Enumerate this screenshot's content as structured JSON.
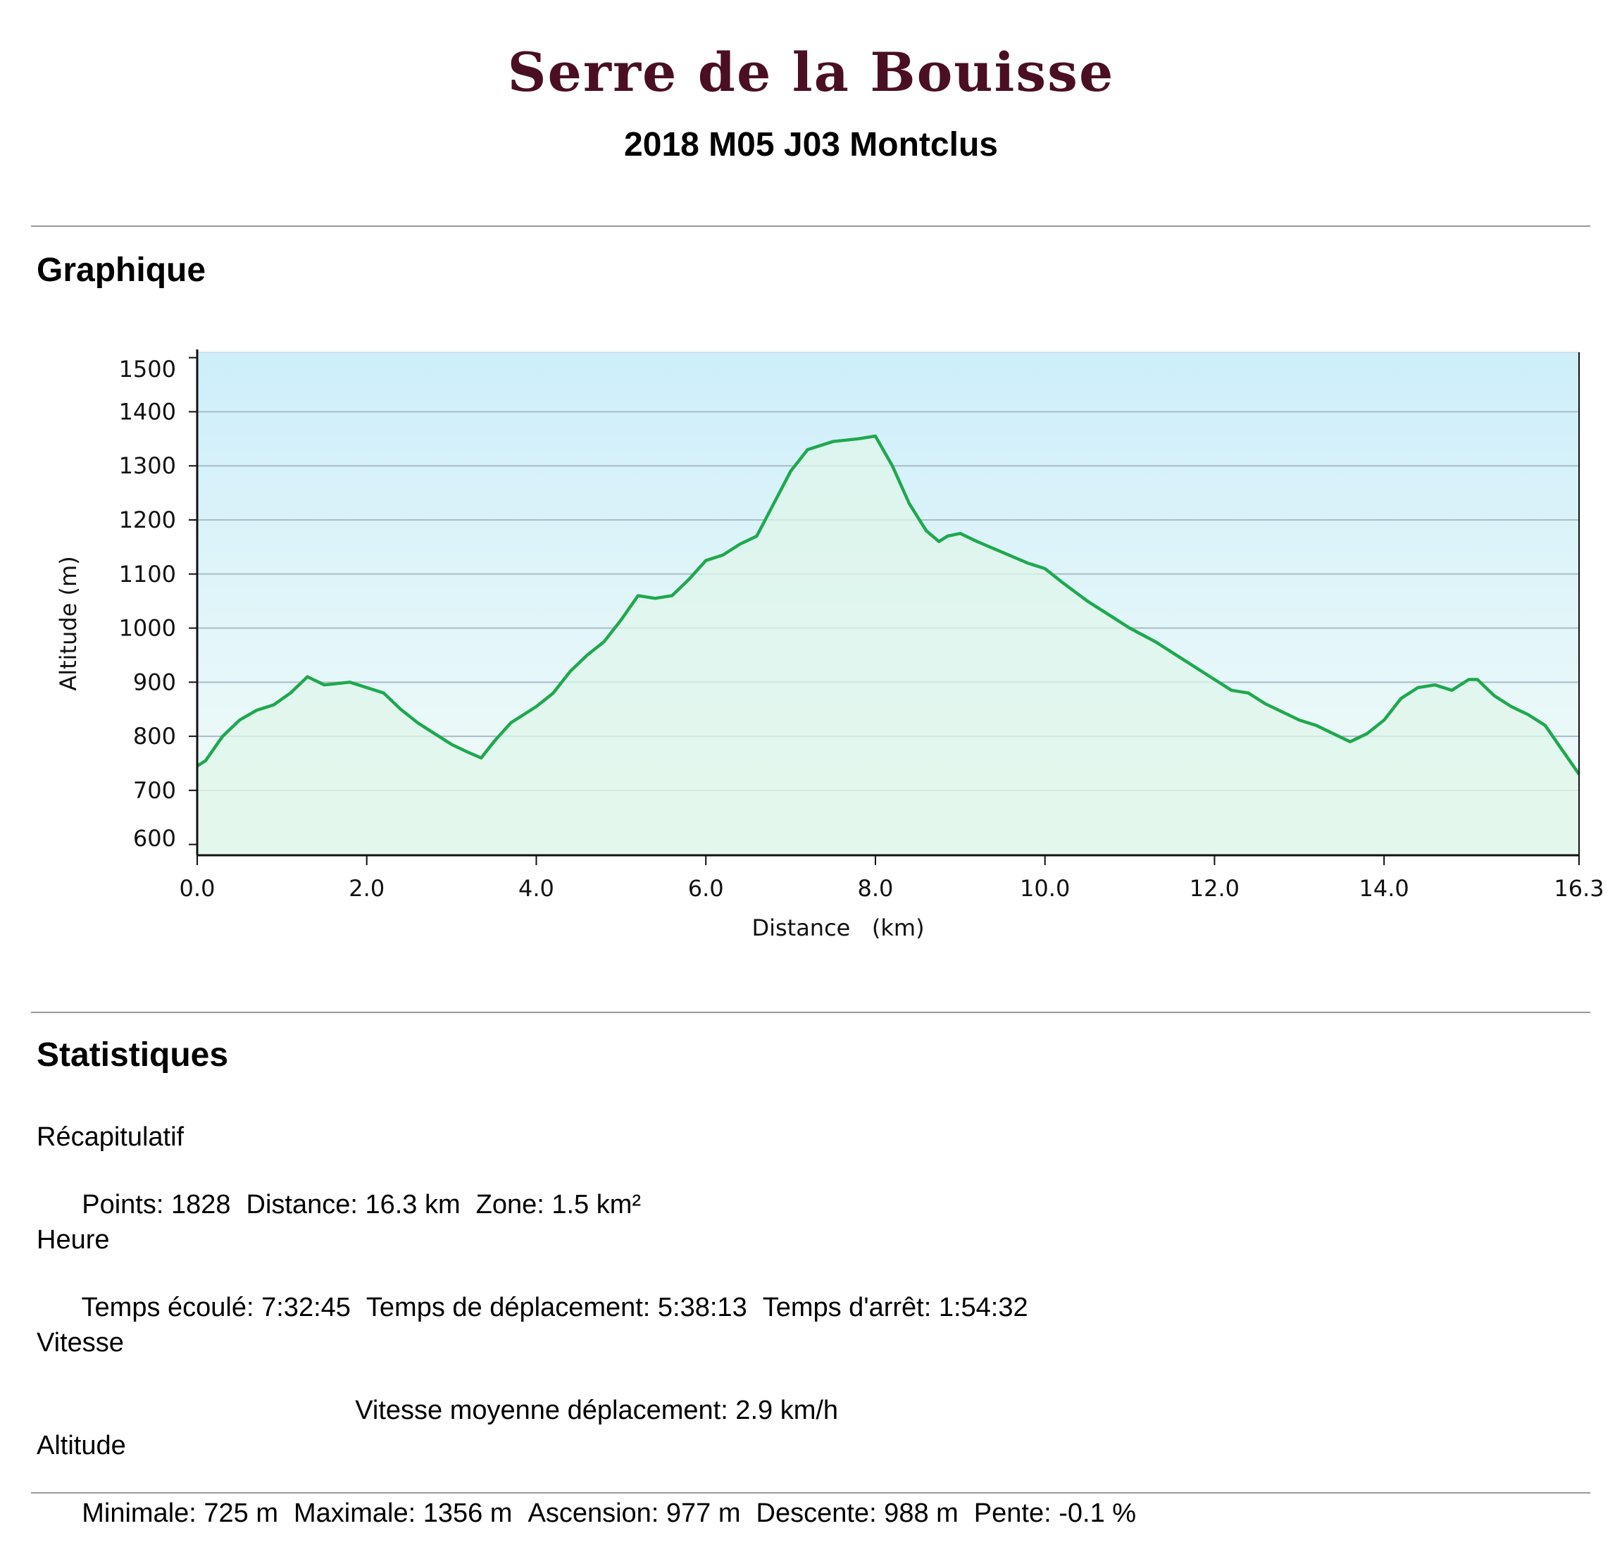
{
  "page": {
    "title": "Serre de la Bouisse",
    "subtitle": "2018 M05 J03 Montclus"
  },
  "sections": {
    "graph_heading": "Graphique",
    "stats_heading": "Statistiques"
  },
  "colors": {
    "title": "#4a0f22",
    "line": "#1fa84f",
    "fill": "#dff5ea",
    "bg_top": "#cdeefa",
    "bg_bottom": "#f4fcf8",
    "grid": "#a9bcc6"
  },
  "chart_data": {
    "type": "area",
    "xlabel": "Distance   (km)",
    "ylabel": "Altitude (m)",
    "xlim": [
      0,
      16.3
    ],
    "ylim": [
      580,
      1510
    ],
    "xticks": [
      "0.0",
      "2.0",
      "4.0",
      "6.0",
      "8.0",
      "10.0",
      "12.0",
      "14.0",
      "16.3"
    ],
    "xtick_values": [
      0,
      2,
      4,
      6,
      8,
      10,
      12,
      14,
      16.3
    ],
    "yticks": [
      "600",
      "700",
      "800",
      "900",
      "1000",
      "1100",
      "1200",
      "1300",
      "1400",
      "1500"
    ],
    "ytick_values": [
      600,
      700,
      800,
      900,
      1000,
      1100,
      1200,
      1300,
      1400,
      1500
    ],
    "grid": true,
    "series": [
      {
        "x": [
          0.0,
          0.1,
          0.3,
          0.5,
          0.7,
          0.9,
          1.1,
          1.3,
          1.5,
          1.8,
          2.0,
          2.2,
          2.4,
          2.6,
          2.8,
          3.0,
          3.2,
          3.35,
          3.5,
          3.7,
          4.0,
          4.2,
          4.4,
          4.6,
          4.8,
          5.0,
          5.2,
          5.4,
          5.6,
          5.8,
          6.0,
          6.2,
          6.4,
          6.6,
          6.8,
          7.0,
          7.2,
          7.5,
          7.8,
          8.0,
          8.2,
          8.4,
          8.6,
          8.75,
          8.85,
          9.0,
          9.2,
          9.5,
          9.8,
          10.0,
          10.2,
          10.5,
          10.8,
          11.0,
          11.3,
          11.6,
          12.0,
          12.2,
          12.4,
          12.6,
          12.8,
          13.0,
          13.2,
          13.4,
          13.6,
          13.8,
          14.0,
          14.2,
          14.4,
          14.6,
          14.8,
          15.0,
          15.1,
          15.3,
          15.5,
          15.7,
          15.9,
          16.1,
          16.3
        ],
        "y": [
          745,
          755,
          800,
          830,
          848,
          858,
          880,
          910,
          895,
          900,
          890,
          880,
          850,
          825,
          805,
          785,
          770,
          760,
          790,
          825,
          855,
          880,
          920,
          950,
          975,
          1015,
          1060,
          1055,
          1060,
          1090,
          1125,
          1135,
          1155,
          1170,
          1230,
          1290,
          1330,
          1345,
          1350,
          1355,
          1300,
          1230,
          1180,
          1160,
          1170,
          1175,
          1160,
          1140,
          1120,
          1110,
          1085,
          1050,
          1020,
          1000,
          975,
          945,
          905,
          885,
          880,
          860,
          845,
          830,
          820,
          805,
          790,
          805,
          830,
          870,
          890,
          895,
          885,
          905,
          905,
          875,
          855,
          840,
          820,
          775,
          730
        ]
      }
    ]
  },
  "stats": {
    "recap": {
      "title": "Récapitulatif",
      "points": "Points: 1828",
      "distance": "Distance: 16.3 km",
      "zone": "Zone: 1.5 km²"
    },
    "heure": {
      "title": "Heure",
      "elapsed": "Temps écoulé: 7:32:45",
      "moving": "Temps de déplacement: 5:38:13",
      "stopped": "Temps d'arrêt: 1:54:32"
    },
    "vitesse": {
      "title": "Vitesse",
      "moving_avg": "Vitesse moyenne déplacement: 2.9 km/h"
    },
    "altitude": {
      "title": "Altitude",
      "min": "Minimale: 725 m",
      "max": "Maximale: 1356 m",
      "ascent": "Ascension: 977 m",
      "descent": "Descente: 988 m",
      "slope": "Pente: -0.1 %"
    }
  }
}
